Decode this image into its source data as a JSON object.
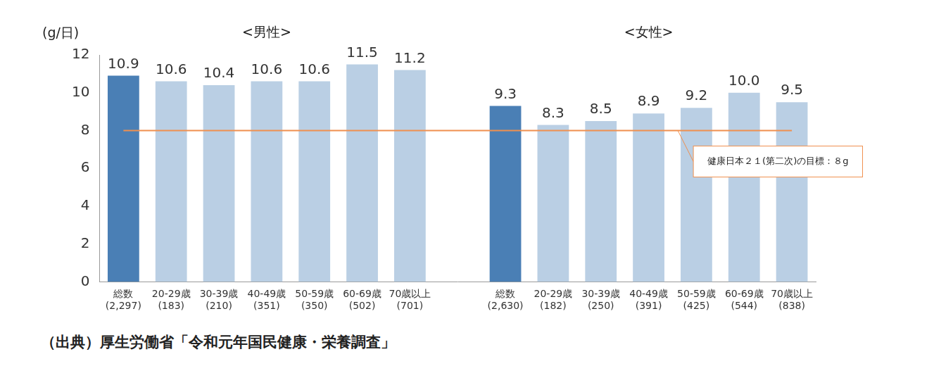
{
  "chart_data": {
    "type": "bar",
    "group_titles": [
      "<男性>",
      "<女性>"
    ],
    "y_label": "(g/日)",
    "source": "（出典）厚生労働省「令和元年国民健康・栄養調査」",
    "categories": [
      [
        "総数",
        "(2,297)"
      ],
      [
        "20-29歳",
        "(183)"
      ],
      [
        "30-39歳",
        "(210)"
      ],
      [
        "40-49歳",
        "(351)"
      ],
      [
        "50-59歳",
        "(350)"
      ],
      [
        "60-69歳",
        "(502)"
      ],
      [
        "70歳以上",
        "(701)"
      ],
      null,
      [
        "総数",
        "(2,630)"
      ],
      [
        "20-29歳",
        "(182)"
      ],
      [
        "30-39歳",
        "(250)"
      ],
      [
        "40-49歳",
        "(391)"
      ],
      [
        "50-59歳",
        "(425)"
      ],
      [
        "60-69歳",
        "(544)"
      ],
      [
        "70歳以上",
        "(838)"
      ]
    ],
    "values": [
      10.9,
      10.6,
      10.4,
      10.6,
      10.6,
      11.5,
      11.2,
      null,
      9.3,
      8.3,
      8.5,
      8.9,
      9.2,
      10.0,
      9.5
    ],
    "value_labels": [
      "10.9",
      "10.6",
      "10.4",
      "10.6",
      "10.6",
      "11.5",
      "11.2",
      null,
      "9.3",
      "8.3",
      "8.5",
      "8.9",
      "9.2",
      "10.0",
      "9.5"
    ],
    "colors": [
      "#4a7fb5",
      "#bacfe4",
      "#bacfe4",
      "#bacfe4",
      "#bacfe4",
      "#bacfe4",
      "#bacfe4",
      null,
      "#4a7fb5",
      "#bacfe4",
      "#bacfe4",
      "#bacfe4",
      "#bacfe4",
      "#bacfe4",
      "#bacfe4"
    ],
    "reference_line": {
      "value": 8,
      "label": "健康日本２１(第二次)の目標：８g",
      "color": "#f0904f"
    },
    "ylim": [
      0,
      12
    ],
    "yticks": [
      0,
      2,
      4,
      6,
      8,
      10,
      12
    ],
    "grid": false,
    "data_labels": true
  }
}
